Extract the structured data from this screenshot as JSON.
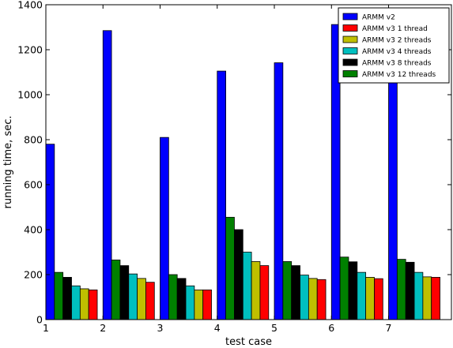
{
  "chart_data": {
    "type": "bar",
    "title": "",
    "xlabel": "test case",
    "ylabel": "running time, sec.",
    "categories": [
      "1",
      "2",
      "3",
      "4",
      "5",
      "6",
      "7"
    ],
    "ylim": [
      0,
      1400
    ],
    "yticks": [
      0,
      200,
      400,
      600,
      800,
      1000,
      1200,
      1400
    ],
    "grid": false,
    "legend_position": "top-right",
    "series": [
      {
        "name": "ARMM v2",
        "color": "#0000ff",
        "values": [
          780,
          1285,
          810,
          1105,
          1142,
          1312,
          1100
        ]
      },
      {
        "name": "ARMM v3 12 threads",
        "color": "#008000",
        "values": [
          210,
          265,
          200,
          455,
          258,
          278,
          268
        ]
      },
      {
        "name": "ARMM v3 8 threads",
        "color": "#000000",
        "values": [
          188,
          240,
          183,
          400,
          240,
          257,
          255
        ]
      },
      {
        "name": "ARMM v3 4 threads",
        "color": "#00bfbf",
        "values": [
          150,
          203,
          150,
          300,
          198,
          210,
          210
        ]
      },
      {
        "name": "ARMM v3 2 threads",
        "color": "#bfbf00",
        "values": [
          137,
          183,
          132,
          258,
          183,
          188,
          190
        ]
      },
      {
        "name": "ARMM v3 1 thread",
        "color": "#ff0000",
        "values": [
          132,
          166,
          132,
          240,
          178,
          182,
          188
        ]
      }
    ],
    "legend_order": [
      "ARMM v2",
      "ARMM v3 1 thread",
      "ARMM v3 2 threads",
      "ARMM v3 4 threads",
      "ARMM v3 8 threads",
      "ARMM v3 12 threads"
    ]
  }
}
